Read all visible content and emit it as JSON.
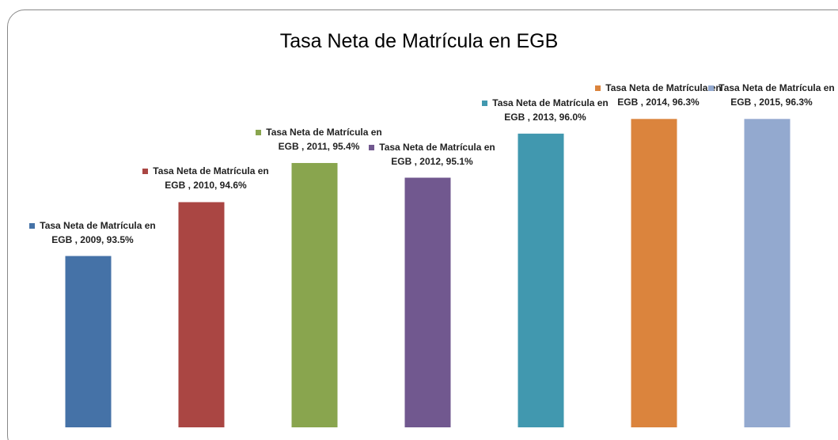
{
  "chart_data": {
    "type": "bar",
    "title": "Tasa Neta de Matrícula en EGB",
    "values": [
      93.5,
      94.6,
      95.4,
      95.1,
      96.0,
      96.3,
      96.3
    ],
    "value_labels": [
      "Tasa Neta de Matrícula en EGB , 2009, 93.5%",
      "Tasa Neta de Matrícula en EGB , 2010, 94.6%",
      "Tasa Neta de Matrícula en EGB , 2011, 95.4%",
      "Tasa Neta de Matrícula en EGB , 2012, 95.1%",
      "Tasa Neta de Matrícula en EGB , 2013, 96.0%",
      "Tasa Neta de Matrícula en EGB , 2014, 96.3%",
      "Tasa Neta de Matrícula en EGB , 2015, 96.3%"
    ],
    "colors": [
      "#4572a7",
      "#aa4643",
      "#89a54e",
      "#71588f",
      "#4198af",
      "#db843d",
      "#93a9cf"
    ],
    "ylim": [
      90,
      97
    ]
  }
}
